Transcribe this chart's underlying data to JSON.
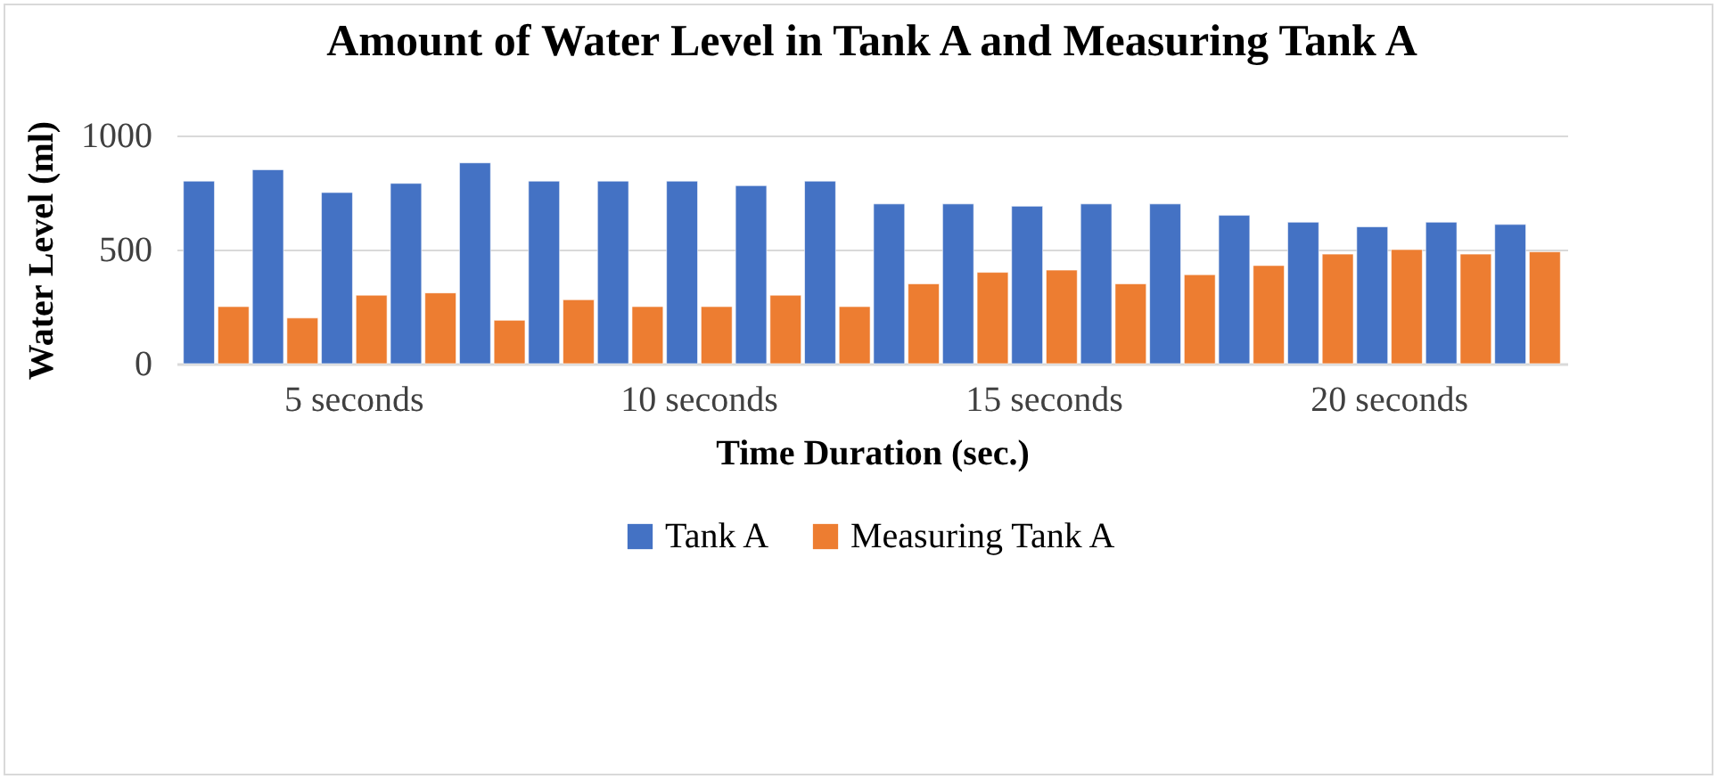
{
  "chart_data": {
    "type": "bar",
    "title": "Amount of Water Level in Tank A and Measuring Tank A",
    "xlabel": "Time Duration (sec.)",
    "ylabel": "Water Level (ml)",
    "categories": [
      null,
      null,
      "5 seconds",
      null,
      null,
      null,
      null,
      "10 seconds",
      null,
      null,
      null,
      null,
      "15 seconds",
      null,
      null,
      null,
      null,
      "20 seconds",
      null,
      null
    ],
    "series": [
      {
        "name": "Tank A",
        "color": "#4472c4",
        "values": [
          800,
          850,
          750,
          790,
          880,
          800,
          800,
          800,
          780,
          800,
          700,
          700,
          690,
          700,
          700,
          650,
          620,
          600,
          620,
          610
        ]
      },
      {
        "name": "Measuring Tank A",
        "color": "#ed7d31",
        "values": [
          250,
          200,
          300,
          310,
          190,
          280,
          250,
          250,
          300,
          250,
          350,
          400,
          410,
          350,
          390,
          430,
          480,
          500,
          480,
          490
        ]
      }
    ],
    "ylim": [
      0,
      1000
    ],
    "yticks": [
      0,
      500,
      1000
    ],
    "grid": "y",
    "legend": "bottom"
  }
}
